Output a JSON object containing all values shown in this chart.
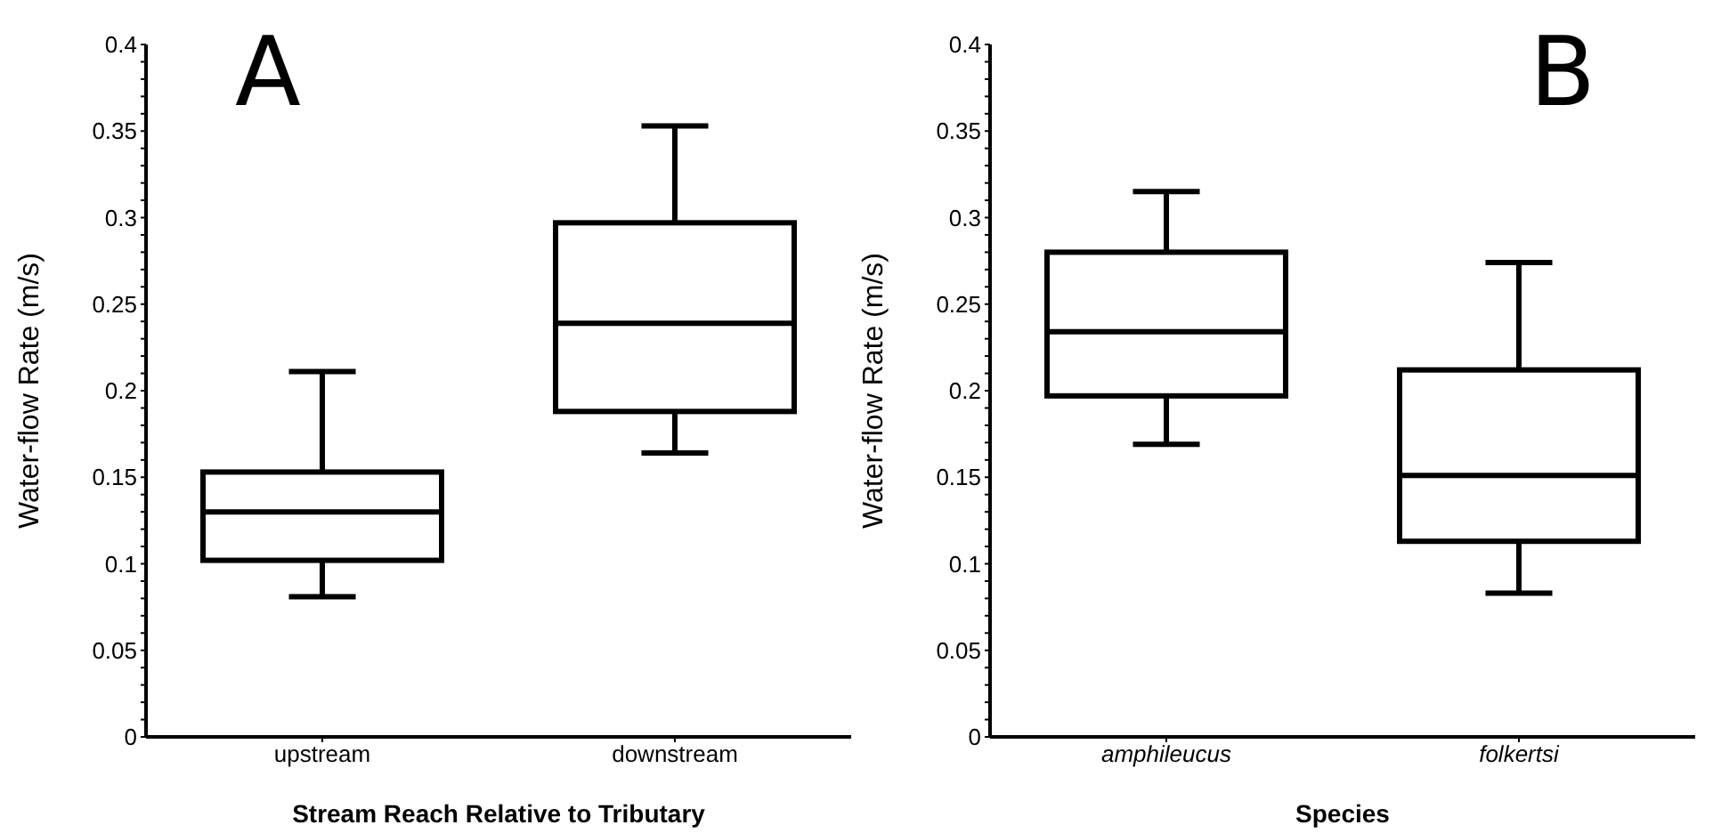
{
  "chart_data": [
    {
      "type": "box",
      "annotations": [
        "A"
      ],
      "xlabel": "Stream Reach Relative to Tributary",
      "ylabel": "Water-flow Rate (m/s)",
      "categories": [
        "upstream",
        "downstream"
      ],
      "boxes": [
        {
          "low": 0.081,
          "q1": 0.102,
          "median": 0.13,
          "q3": 0.153,
          "high": 0.211
        },
        {
          "low": 0.164,
          "q1": 0.188,
          "median": 0.239,
          "q3": 0.297,
          "high": 0.353
        }
      ],
      "color": "#000000",
      "ylim": [
        0,
        0.4
      ],
      "yticks": [
        0,
        {
          "value": 0.01,
          "label": null
        },
        {
          "value": 0.02,
          "label": null
        },
        {
          "value": 0.03,
          "label": null
        },
        {
          "value": 0.04,
          "label": null
        },
        0.05,
        {
          "value": 0.06,
          "label": null
        },
        {
          "value": 0.07,
          "label": null
        },
        {
          "value": 0.08,
          "label": null
        },
        {
          "value": 0.09,
          "label": null
        },
        0.1,
        {
          "value": 0.11,
          "label": null
        },
        {
          "value": 0.12,
          "label": null
        },
        {
          "value": 0.13,
          "label": null
        },
        {
          "value": 0.14,
          "label": null
        },
        0.15,
        {
          "value": 0.16,
          "label": null
        },
        {
          "value": 0.17,
          "label": null
        },
        {
          "value": 0.18,
          "label": null
        },
        {
          "value": 0.19,
          "label": null
        },
        0.2,
        {
          "value": 0.21,
          "label": null
        },
        {
          "value": 0.22,
          "label": null
        },
        {
          "value": 0.23,
          "label": null
        },
        {
          "value": 0.24,
          "label": null
        },
        0.25,
        {
          "value": 0.26,
          "label": null
        },
        {
          "value": 0.27,
          "label": null
        },
        {
          "value": 0.28,
          "label": null
        },
        {
          "value": 0.29,
          "label": null
        },
        0.3,
        {
          "value": 0.31,
          "label": null
        },
        {
          "value": 0.32,
          "label": null
        },
        {
          "value": 0.33,
          "label": null
        },
        {
          "value": 0.34,
          "label": null
        },
        0.35,
        {
          "value": 0.36,
          "label": null
        },
        {
          "value": 0.37,
          "label": null
        },
        {
          "value": 0.38,
          "label": null
        },
        {
          "value": 0.39,
          "label": null
        },
        0.4
      ],
      "grid": false,
      "legend": false
    },
    {
      "type": "box",
      "annotations": [
        "B"
      ],
      "xlabel": "Species",
      "ylabel": "Water-flow Rate (m/s)",
      "categories": [
        "amphileucus",
        "folkertsi"
      ],
      "boxes": [
        {
          "low": 0.169,
          "q1": 0.197,
          "median": 0.234,
          "q3": 0.28,
          "high": 0.315
        },
        {
          "low": 0.083,
          "q1": 0.113,
          "median": 0.151,
          "q3": 0.212,
          "high": 0.274
        }
      ],
      "color": "#000000",
      "ylim": [
        0,
        0.4
      ],
      "yticks": [
        0,
        {
          "value": 0.01,
          "label": null
        },
        {
          "value": 0.02,
          "label": null
        },
        {
          "value": 0.03,
          "label": null
        },
        {
          "value": 0.04,
          "label": null
        },
        0.05,
        {
          "value": 0.06,
          "label": null
        },
        {
          "value": 0.07,
          "label": null
        },
        {
          "value": 0.08,
          "label": null
        },
        {
          "value": 0.09,
          "label": null
        },
        0.1,
        {
          "value": 0.11,
          "label": null
        },
        {
          "value": 0.12,
          "label": null
        },
        {
          "value": 0.13,
          "label": null
        },
        {
          "value": 0.14,
          "label": null
        },
        0.15,
        {
          "value": 0.16,
          "label": null
        },
        {
          "value": 0.17,
          "label": null
        },
        {
          "value": 0.18,
          "label": null
        },
        {
          "value": 0.19,
          "label": null
        },
        0.2,
        {
          "value": 0.21,
          "label": null
        },
        {
          "value": 0.22,
          "label": null
        },
        {
          "value": 0.23,
          "label": null
        },
        {
          "value": 0.24,
          "label": null
        },
        0.25,
        {
          "value": 0.26,
          "label": null
        },
        {
          "value": 0.27,
          "label": null
        },
        {
          "value": 0.28,
          "label": null
        },
        {
          "value": 0.29,
          "label": null
        },
        0.3,
        {
          "value": 0.31,
          "label": null
        },
        {
          "value": 0.32,
          "label": null
        },
        {
          "value": 0.33,
          "label": null
        },
        {
          "value": 0.34,
          "label": null
        },
        0.35,
        {
          "value": 0.36,
          "label": null
        },
        {
          "value": 0.37,
          "label": null
        },
        {
          "value": 0.38,
          "label": null
        },
        {
          "value": 0.39,
          "label": null
        },
        0.4
      ],
      "grid": false,
      "legend": false
    }
  ]
}
